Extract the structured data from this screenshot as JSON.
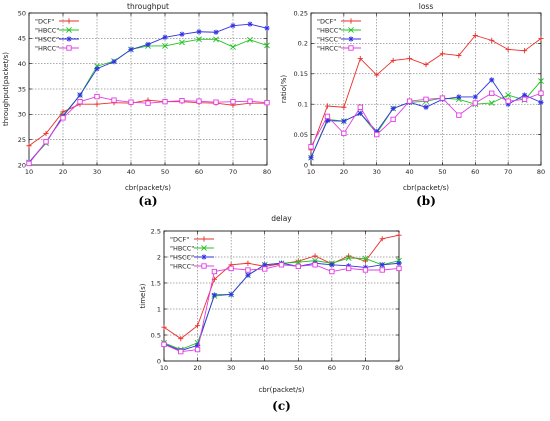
{
  "chart_data": [
    {
      "type": "line",
      "caption": "(a)",
      "title": "throughput",
      "xlabel": "cbr(packet/s)",
      "ylabel": "throughput(packet/s)",
      "x": [
        10,
        15,
        20,
        25,
        30,
        35,
        40,
        45,
        50,
        55,
        60,
        65,
        70,
        75,
        80
      ],
      "xlim": [
        10,
        80
      ],
      "ylim": [
        20,
        50
      ],
      "xticks": [
        10,
        20,
        30,
        40,
        50,
        60,
        70,
        80
      ],
      "yticks": [
        20,
        25,
        30,
        35,
        40,
        45,
        50
      ],
      "legend": "top-left",
      "series": [
        {
          "name": "\"DCF\"",
          "color": "#e8302a",
          "marker": "plus",
          "values": [
            23.8,
            26.2,
            30.5,
            32.0,
            32.0,
            32.3,
            32.2,
            32.8,
            32.5,
            32.5,
            32.3,
            32.2,
            31.8,
            32.2,
            32.2
          ]
        },
        {
          "name": "\"HBCC\"",
          "color": "#22c322",
          "marker": "x",
          "values": [
            20.5,
            24.3,
            29.8,
            33.8,
            39.5,
            40.5,
            42.8,
            43.5,
            43.5,
            44.2,
            44.8,
            44.8,
            43.3,
            44.7,
            43.6
          ]
        },
        {
          "name": "\"HSCC\"",
          "color": "#3232e6",
          "marker": "star",
          "values": [
            20.5,
            24.5,
            29.6,
            33.8,
            39.0,
            40.4,
            42.8,
            43.8,
            45.2,
            45.8,
            46.3,
            46.2,
            47.5,
            47.8,
            47.0
          ]
        },
        {
          "name": "\"HRCC\"",
          "color": "#e23ce6",
          "marker": "square",
          "values": [
            20.3,
            24.6,
            29.3,
            32.5,
            33.5,
            32.8,
            32.4,
            32.2,
            32.5,
            32.7,
            32.6,
            32.4,
            32.5,
            32.6,
            32.3
          ]
        }
      ]
    },
    {
      "type": "line",
      "caption": "(b)",
      "title": "loss",
      "xlabel": "cbr(packet/s)",
      "ylabel": "ratio(%)",
      "x": [
        10,
        15,
        20,
        25,
        30,
        35,
        40,
        45,
        50,
        55,
        60,
        65,
        70,
        75,
        80
      ],
      "xlim": [
        10,
        80
      ],
      "ylim": [
        0,
        0.25
      ],
      "xticks": [
        10,
        20,
        30,
        40,
        50,
        60,
        70,
        80
      ],
      "yticks": [
        0,
        0.05,
        0.1,
        0.15,
        0.2,
        0.25
      ],
      "yticklabels": [
        "0",
        "0.05",
        "0.1",
        "0.15",
        "0.2",
        "0.25"
      ],
      "legend": "top-left",
      "series": [
        {
          "name": "\"DCF\"",
          "color": "#e8302a",
          "marker": "plus",
          "values": [
            0.025,
            0.097,
            0.095,
            0.175,
            0.148,
            0.172,
            0.175,
            0.165,
            0.183,
            0.18,
            0.213,
            0.205,
            0.19,
            0.188,
            0.208
          ]
        },
        {
          "name": "\"HBCC\"",
          "color": "#22c322",
          "marker": "x",
          "values": [
            0.012,
            0.075,
            0.072,
            0.085,
            0.052,
            0.093,
            0.103,
            0.105,
            0.11,
            0.108,
            0.1,
            0.102,
            0.115,
            0.107,
            0.138
          ]
        },
        {
          "name": "\"HSCC\"",
          "color": "#3232e6",
          "marker": "star",
          "values": [
            0.012,
            0.073,
            0.072,
            0.085,
            0.055,
            0.093,
            0.103,
            0.095,
            0.108,
            0.112,
            0.112,
            0.14,
            0.1,
            0.115,
            0.103
          ]
        },
        {
          "name": "\"HRCC\"",
          "color": "#e23ce6",
          "marker": "square",
          "values": [
            0.03,
            0.08,
            0.052,
            0.095,
            0.05,
            0.075,
            0.105,
            0.108,
            0.11,
            0.082,
            0.102,
            0.118,
            0.105,
            0.108,
            0.118
          ]
        }
      ]
    },
    {
      "type": "line",
      "caption": "(c)",
      "title": "delay",
      "xlabel": "cbr(packet/s)",
      "ylabel": "time(s)",
      "x": [
        10,
        15,
        20,
        25,
        30,
        35,
        40,
        45,
        50,
        55,
        60,
        65,
        70,
        75,
        80
      ],
      "xlim": [
        10,
        80
      ],
      "ylim": [
        0,
        2.5
      ],
      "xticks": [
        10,
        20,
        30,
        40,
        50,
        60,
        70,
        80
      ],
      "yticks": [
        0,
        0.5,
        1,
        1.5,
        2,
        2.5
      ],
      "yticklabels": [
        "0",
        "0.5",
        "1",
        "1.5",
        "2",
        "2.5"
      ],
      "legend": "top-left",
      "series": [
        {
          "name": "\"DCF\"",
          "color": "#e8302a",
          "marker": "plus",
          "values": [
            0.65,
            0.43,
            0.68,
            1.57,
            1.85,
            1.88,
            1.82,
            1.87,
            1.92,
            2.02,
            1.87,
            2.02,
            1.92,
            2.35,
            2.42
          ]
        },
        {
          "name": "\"HBCC\"",
          "color": "#22c322",
          "marker": "x",
          "values": [
            0.35,
            0.22,
            0.35,
            1.25,
            1.28,
            1.65,
            1.85,
            1.88,
            1.9,
            1.93,
            1.88,
            1.98,
            1.97,
            1.85,
            1.93
          ]
        },
        {
          "name": "\"HSCC\"",
          "color": "#3232e6",
          "marker": "star",
          "values": [
            0.33,
            0.2,
            0.3,
            1.27,
            1.28,
            1.65,
            1.85,
            1.88,
            1.82,
            1.88,
            1.85,
            1.83,
            1.8,
            1.85,
            1.88
          ]
        },
        {
          "name": "\"HRCC\"",
          "color": "#e23ce6",
          "marker": "square",
          "values": [
            0.32,
            0.18,
            0.22,
            1.72,
            1.78,
            1.75,
            1.77,
            1.85,
            1.82,
            1.85,
            1.72,
            1.78,
            1.75,
            1.75,
            1.78
          ]
        }
      ]
    }
  ]
}
